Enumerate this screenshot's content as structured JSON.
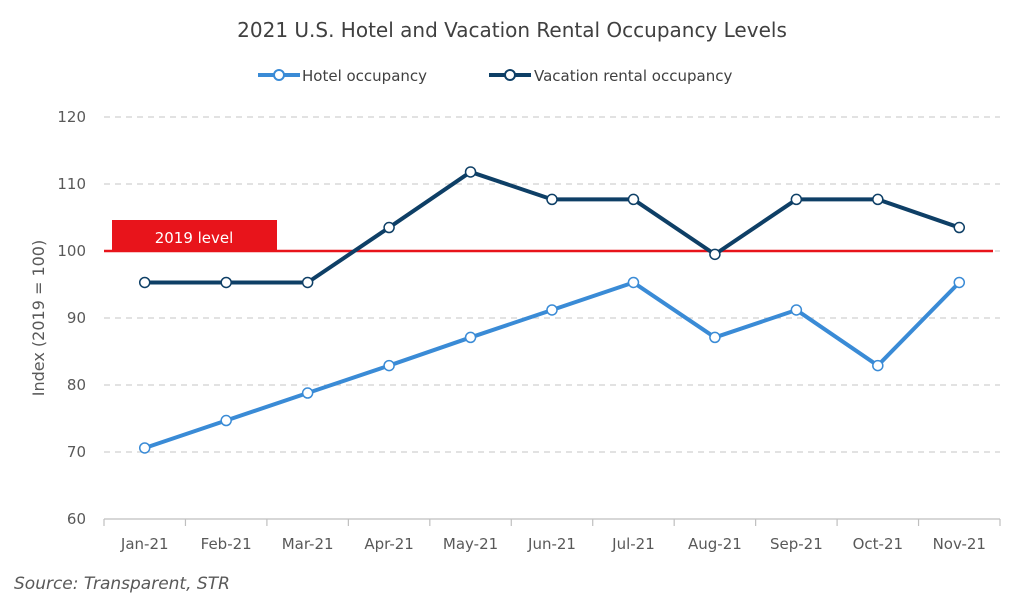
{
  "chart_data": {
    "type": "line",
    "title": "2021 U.S. Hotel and Vacation Rental Occupancy Levels",
    "xlabel": "",
    "ylabel": "Index (2019 = 100)",
    "ylim": [
      60,
      120
    ],
    "yticks": [
      60,
      70,
      80,
      90,
      100,
      110,
      120
    ],
    "grid": true,
    "legend_position": "top-center",
    "categories": [
      "Jan-21",
      "Feb-21",
      "Mar-21",
      "Apr-21",
      "May-21",
      "Jun-21",
      "Jul-21",
      "Aug-21",
      "Sep-21",
      "Oct-21",
      "Nov-21"
    ],
    "series": [
      {
        "name": "Hotel occupancy",
        "color": "#3a8bd6",
        "values": [
          70.6,
          74.7,
          78.8,
          82.9,
          87.1,
          91.2,
          95.3,
          87.1,
          91.2,
          82.9,
          95.3
        ]
      },
      {
        "name": "Vacation rental occupancy",
        "color": "#0e3f66",
        "values": [
          95.3,
          95.3,
          95.3,
          103.5,
          111.8,
          107.7,
          107.7,
          99.5,
          107.7,
          107.7,
          103.5
        ]
      }
    ],
    "reference_line": {
      "value": 100,
      "label": "2019 level",
      "color": "#e8141b"
    }
  },
  "source": "Source: Transparent, STR"
}
